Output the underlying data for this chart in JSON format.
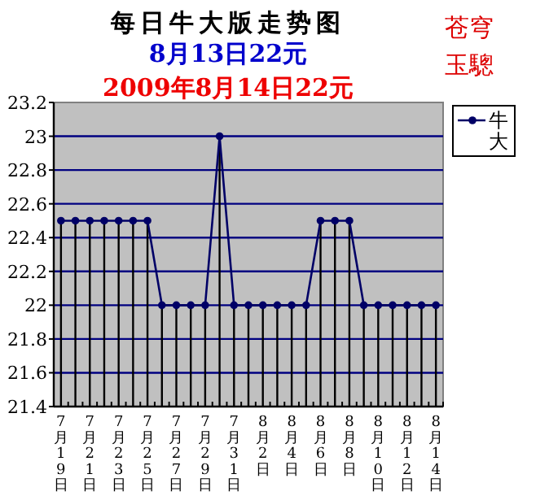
{
  "chart_data": {
    "type": "line",
    "title": "每日牛大版走势图",
    "subtitle": "8月13日22元",
    "annotations": [
      "2009年8月14日22元",
      "苍穹玉驄"
    ],
    "categories": [
      "7月19日",
      null,
      "7月21日",
      null,
      "7月23日",
      null,
      "7月25日",
      null,
      "7月27日",
      null,
      "7月29日",
      null,
      "7月31日",
      null,
      "8月2日",
      null,
      "8月4日",
      null,
      "8月6日",
      null,
      "8月8日",
      null,
      "8月10日",
      null,
      "8月12日",
      null,
      "8月14日"
    ],
    "series": [
      {
        "type": "lollipop",
        "color": "#000066",
        "marker": "circle",
        "values": [
          22.5,
          22.5,
          22.5,
          22.5,
          22.5,
          22.5,
          22.5,
          22,
          22,
          22,
          22,
          23,
          22,
          22,
          22,
          22,
          22,
          22,
          22.5,
          22.5,
          22.5,
          22,
          22,
          22,
          22,
          22,
          22
        ]
      },
      {
        "name": "牛大",
        "color": "#000066",
        "values": [
          22.5,
          22.5,
          22.5,
          22.5,
          22.5,
          22.5,
          22.5,
          22,
          22,
          22,
          22,
          23,
          22,
          22,
          22,
          22,
          22,
          22,
          22.5,
          22.5,
          22.5,
          22,
          22,
          22,
          22,
          22,
          22
        ]
      }
    ],
    "ylim": [
      21.4,
      23.2
    ],
    "yticks": [
      21.4,
      21.6,
      21.8,
      22,
      22.2,
      22.4,
      22.6,
      22.8,
      23,
      23.2
    ],
    "grid": "y",
    "legend": "right",
    "line_style": "solid"
  }
}
